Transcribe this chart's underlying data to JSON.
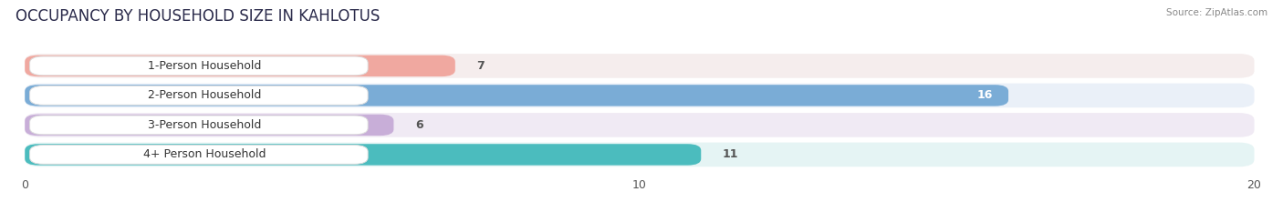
{
  "title": "OCCUPANCY BY HOUSEHOLD SIZE IN KAHLOTUS",
  "source": "Source: ZipAtlas.com",
  "categories": [
    "1-Person Household",
    "2-Person Household",
    "3-Person Household",
    "4+ Person Household"
  ],
  "values": [
    7,
    16,
    6,
    11
  ],
  "bar_colors": [
    "#f0a8a0",
    "#7aacd6",
    "#c8aed8",
    "#4bbcbe"
  ],
  "row_bg_colors": [
    "#f5eded",
    "#eaf0f8",
    "#f0eaf4",
    "#e5f4f4"
  ],
  "value_colors": [
    "#555555",
    "#ffffff",
    "#555555",
    "#555555"
  ],
  "xlim_max": 20,
  "xticks": [
    0,
    10,
    20
  ],
  "background_color": "#ffffff",
  "title_fontsize": 12,
  "label_fontsize": 9,
  "value_fontsize": 9,
  "figsize": [
    14.06,
    2.33
  ],
  "dpi": 100
}
